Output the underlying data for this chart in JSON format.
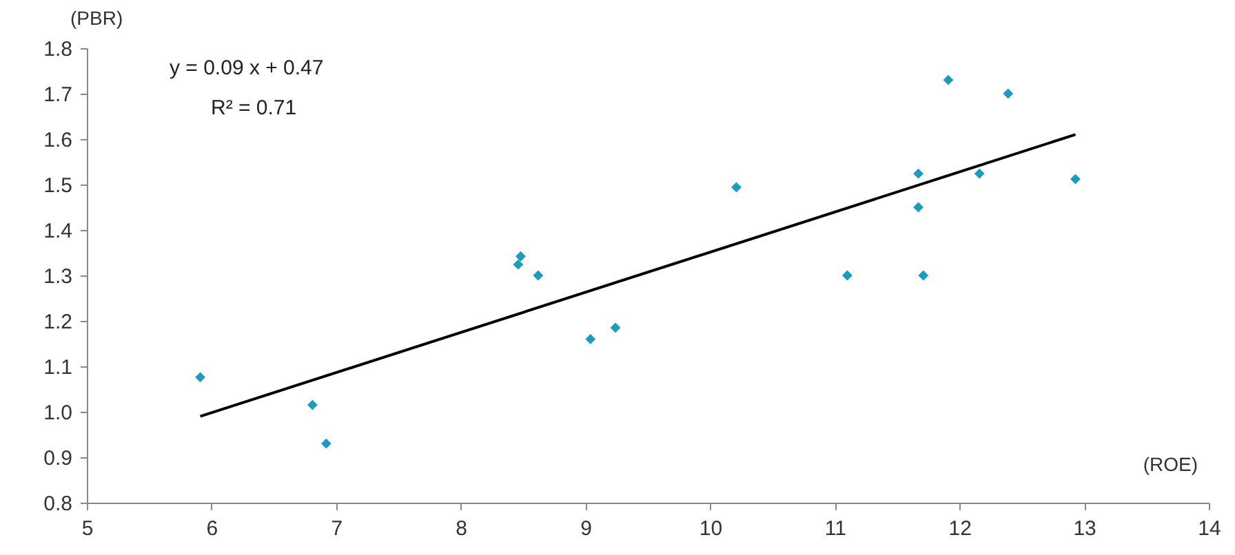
{
  "chart_data": {
    "type": "scatter",
    "xlabel": "(ROE)",
    "ylabel": "(PBR)",
    "xlim": [
      5,
      14
    ],
    "xticks": [
      5,
      6,
      7,
      8,
      9,
      10,
      11,
      12,
      13,
      14
    ],
    "ylim": [
      0.8,
      1.8
    ],
    "yticks": [
      {
        "value": 0.8,
        "label": "0.8"
      },
      {
        "value": 0.9,
        "label": "0.9"
      },
      {
        "value": 1.0,
        "label": "1.0"
      },
      {
        "value": 1.1,
        "label": "1.1"
      },
      {
        "value": 1.2,
        "label": "1.2"
      },
      {
        "value": 1.3,
        "label": "1.3"
      },
      {
        "value": 1.4,
        "label": "1.4"
      },
      {
        "value": 1.5,
        "label": "1.5"
      },
      {
        "value": 1.6,
        "label": "1.6"
      },
      {
        "value": 1.7,
        "label": "1.7"
      },
      {
        "value": 1.8,
        "label": "1.8"
      }
    ],
    "grid": false,
    "annotations": [
      "y = 0.09 x + 0.47",
      "R² = 0.71"
    ],
    "series": [
      {
        "type": "scatter",
        "marker": "diamond",
        "color": "#1a9bbf",
        "x": [
          5.91,
          6.81,
          6.92,
          8.46,
          8.48,
          8.62,
          9.04,
          9.24,
          10.21,
          11.1,
          11.67,
          11.67,
          11.71,
          11.91,
          12.16,
          12.39,
          12.93
        ],
        "values": [
          1.076,
          1.015,
          0.93,
          1.324,
          1.342,
          1.3,
          1.16,
          1.185,
          1.494,
          1.3,
          1.524,
          1.45,
          1.3,
          1.73,
          1.524,
          1.7,
          1.512
        ]
      },
      {
        "type": "line",
        "marker": "none",
        "line_style": "solid",
        "color": "#000000",
        "x": [
          5.91,
          12.93
        ],
        "values": [
          0.99,
          1.61
        ]
      }
    ]
  }
}
